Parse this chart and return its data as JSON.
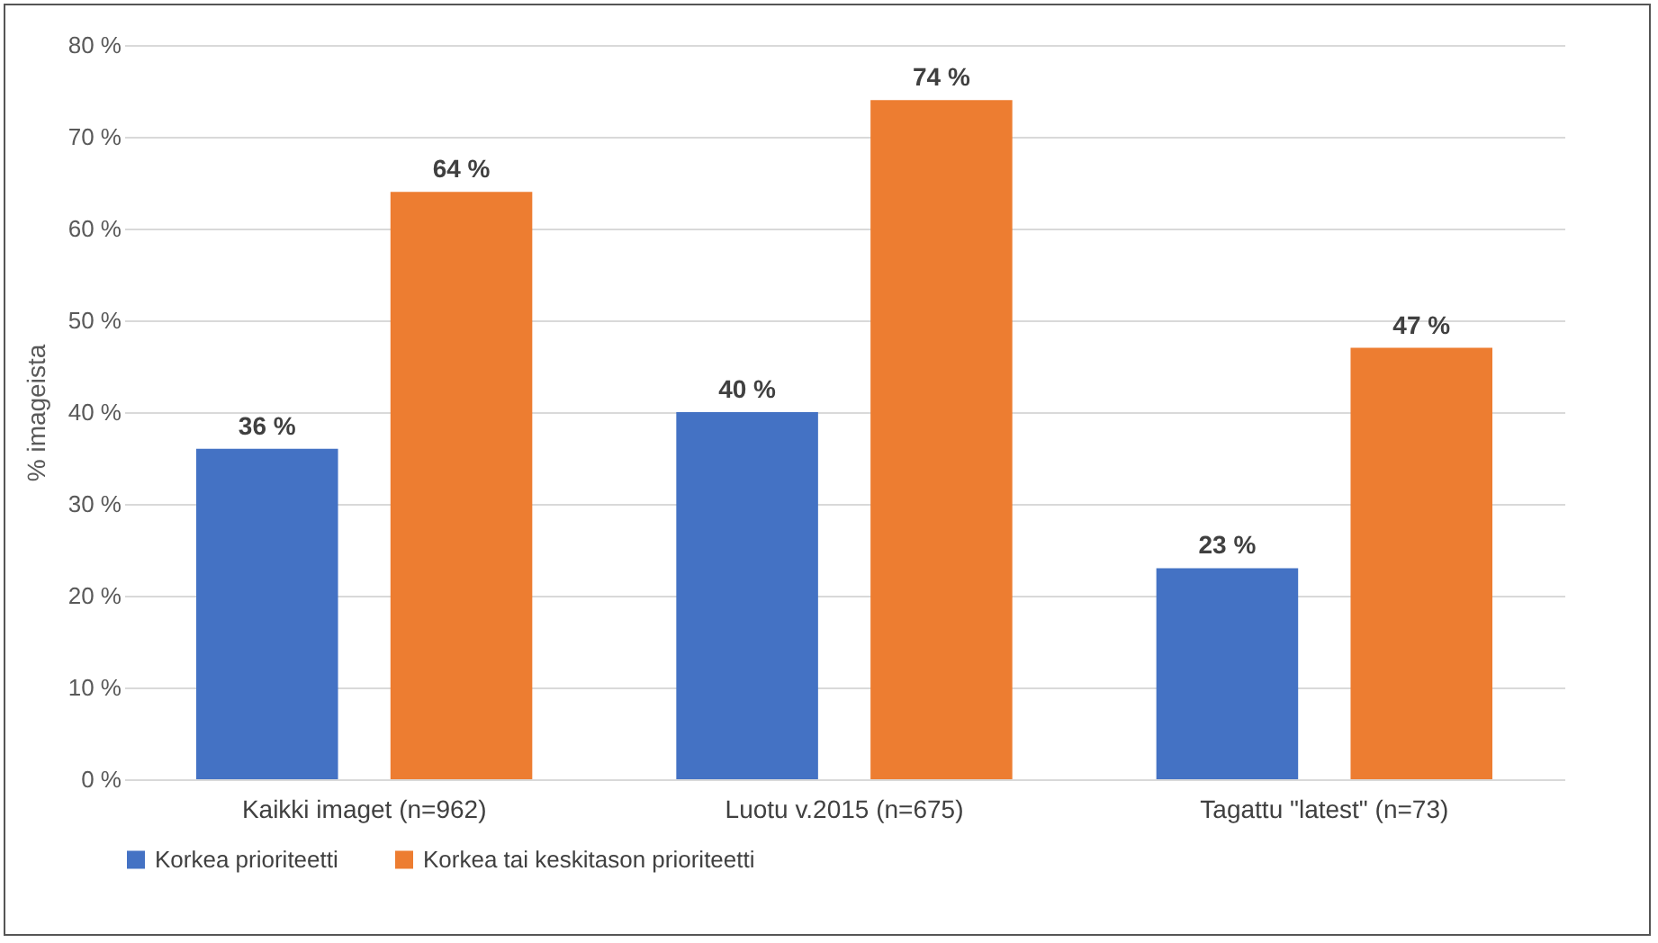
{
  "chart_data": {
    "type": "bar",
    "ylabel": "% imageista",
    "categories": [
      "Kaikki imaget (n=962)",
      "Luotu v.2015 (n=675)",
      "Tagattu \"latest\" (n=73)"
    ],
    "series": [
      {
        "name": "Korkea prioriteetti",
        "color": "#4472c4",
        "values": [
          36,
          40,
          23
        ],
        "value_labels": [
          "36 %",
          "40 %",
          "23 %"
        ]
      },
      {
        "name": "Korkea tai keskitason prioriteetti",
        "color": "#ed7d31",
        "values": [
          64,
          74,
          47
        ],
        "value_labels": [
          "64 %",
          "74 %",
          "47 %"
        ]
      }
    ],
    "ylim": [
      0,
      80
    ],
    "yticks": [
      {
        "value": 0,
        "label": "0 %"
      },
      {
        "value": 10,
        "label": "10 %"
      },
      {
        "value": 20,
        "label": "20 %"
      },
      {
        "value": 30,
        "label": "30 %"
      },
      {
        "value": 40,
        "label": "40 %"
      },
      {
        "value": 50,
        "label": "50 %"
      },
      {
        "value": 60,
        "label": "60 %"
      },
      {
        "value": 70,
        "label": "70 %"
      },
      {
        "value": 80,
        "label": "80 %"
      }
    ],
    "grid": "y",
    "legend": "bottom"
  }
}
